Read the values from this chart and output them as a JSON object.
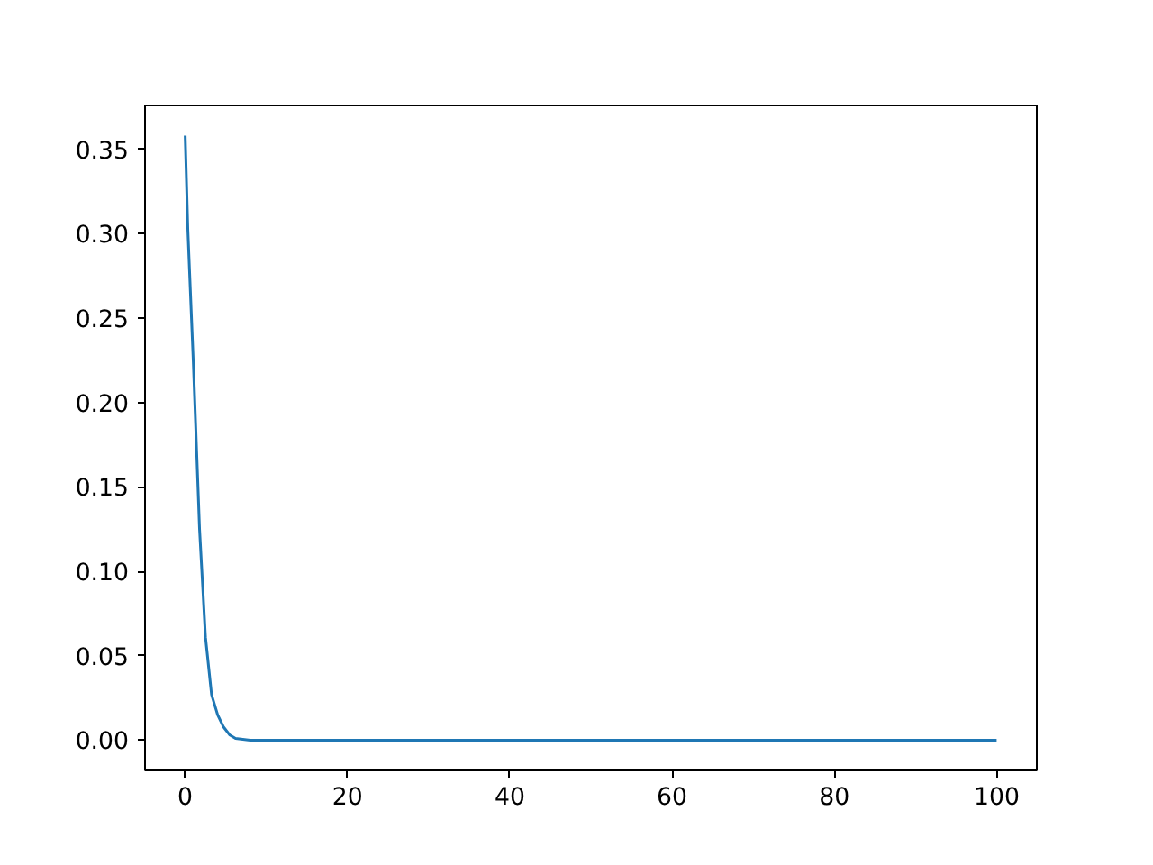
{
  "chart_data": {
    "type": "line",
    "x": [
      0,
      0.33,
      1,
      1.77,
      2.5,
      3.25,
      4,
      4.7,
      5.5,
      6.2,
      8,
      10,
      20,
      40,
      60,
      80,
      100
    ],
    "series": [
      {
        "color": "#1f77b4",
        "values": [
          0.358,
          0.302,
          0.224,
          0.125,
          0.061,
          0.027,
          0.015,
          0.008,
          0.003,
          0.001,
          0,
          0,
          0,
          0,
          0,
          0,
          0
        ]
      }
    ],
    "xlim": [
      -4.95,
      104.95
    ],
    "ylim": [
      -0.0179,
      0.3759
    ],
    "xticks": [
      0,
      20,
      40,
      60,
      80,
      100
    ],
    "yticks": [
      {
        "value": 0,
        "label": "0.00"
      },
      {
        "value": 0.05,
        "label": "0.05"
      },
      {
        "value": 0.1,
        "label": "0.10"
      },
      {
        "value": 0.15,
        "label": "0.15"
      },
      {
        "value": 0.2,
        "label": "0.20"
      },
      {
        "value": 0.25,
        "label": "0.25"
      },
      {
        "value": 0.3,
        "label": "0.30"
      },
      {
        "value": 0.35,
        "label": "0.35"
      }
    ],
    "grid": false
  }
}
